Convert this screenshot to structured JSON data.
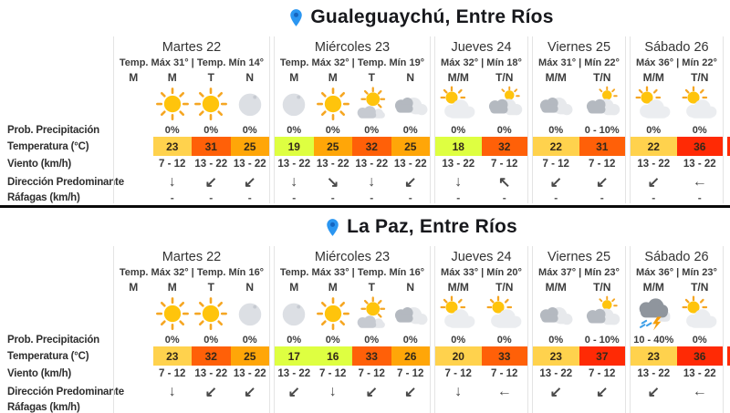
{
  "row_labels": [
    "Prob. Precipitación",
    "Temperatura (°C)",
    "Viento (km/h)",
    "Dirección Predominante",
    "Ráfagas (km/h)"
  ],
  "pin_color": "#2B96F1",
  "divider_color": "#0A0A0A",
  "temp_colors": {
    "cool": "#DEFF41",
    "mild": "#FFD24D",
    "warm": "#FFA608",
    "hot": "#FF6008",
    "very_hot": "#FF2A05"
  },
  "sections": [
    {
      "city": "Gualeguaychú, Entre Ríos",
      "edge_sliver_color": "#FF2A05",
      "days": [
        {
          "name": "Martes 22",
          "temp_line": "Temp. Máx 31° | Temp. Mín 14°",
          "cols": [
            {
              "period": "M",
              "empty": true
            },
            {
              "period": "M",
              "icon": "sun-icon",
              "precip": "0%",
              "temp": "23",
              "temp_color": "#FFD24D",
              "wind": "7 - 12",
              "dir": "↓",
              "gust": "-"
            },
            {
              "period": "T",
              "icon": "sun-icon",
              "precip": "0%",
              "temp": "31",
              "temp_color": "#FF6008",
              "wind": "13 - 22",
              "dir": "↙",
              "gust": "-"
            },
            {
              "period": "N",
              "icon": "moon-icon",
              "precip": "0%",
              "temp": "25",
              "temp_color": "#FFA608",
              "wind": "13 - 22",
              "dir": "↙",
              "gust": "-"
            }
          ]
        },
        {
          "name": "Miércoles 23",
          "temp_line": "Temp. Máx 32° | Temp. Mín 19°",
          "cols": [
            {
              "period": "M",
              "icon": "moon-icon",
              "precip": "0%",
              "temp": "19",
              "temp_color": "#DEFF41",
              "wind": "13 - 22",
              "dir": "↓",
              "gust": "-"
            },
            {
              "period": "M",
              "icon": "sun-icon",
              "precip": "0%",
              "temp": "25",
              "temp_color": "#FFA608",
              "wind": "13 - 22",
              "dir": "↘",
              "gust": "-"
            },
            {
              "period": "T",
              "icon": "sun-with-cloud-icon",
              "precip": "0%",
              "temp": "32",
              "temp_color": "#FF6008",
              "wind": "13 - 22",
              "dir": "↓",
              "gust": "-"
            },
            {
              "period": "N",
              "icon": "cloudy-icon",
              "precip": "0%",
              "temp": "25",
              "temp_color": "#FFA608",
              "wind": "13 - 22",
              "dir": "↙",
              "gust": "-"
            }
          ]
        },
        {
          "name": "Jueves 24",
          "temp_line": "Máx 32° | Mín 18°",
          "cols": [
            {
              "period": "M/M",
              "icon": "partly-cloudy-icon",
              "precip": "0%",
              "temp": "18",
              "temp_color": "#DEFF41",
              "wind": "13 - 22",
              "dir": "↓",
              "gust": "-"
            },
            {
              "period": "T/N",
              "icon": "mostly-cloudy-icon",
              "precip": "0%",
              "temp": "32",
              "temp_color": "#FF6008",
              "wind": "7 - 12",
              "dir": "↖",
              "gust": "-"
            }
          ]
        },
        {
          "name": "Viernes 25",
          "temp_line": "Máx 31° | Mín 22°",
          "cols": [
            {
              "period": "M/M",
              "icon": "cloudy-icon",
              "precip": "0%",
              "temp": "22",
              "temp_color": "#FFD24D",
              "wind": "7 - 12",
              "dir": "↙",
              "gust": "-"
            },
            {
              "period": "T/N",
              "icon": "mostly-cloudy-icon",
              "precip": "0 - 10%",
              "temp": "31",
              "temp_color": "#FF6008",
              "wind": "7 - 12",
              "dir": "↙",
              "gust": "-"
            }
          ]
        },
        {
          "name": "Sábado 26",
          "temp_line": "Máx 36° | Mín 22°",
          "cols": [
            {
              "period": "M/M",
              "icon": "partly-cloudy-icon",
              "precip": "0%",
              "temp": "22",
              "temp_color": "#FFD24D",
              "wind": "13 - 22",
              "dir": "↙",
              "gust": "-"
            },
            {
              "period": "T/N",
              "icon": "partly-cloudy-icon",
              "precip": "0%",
              "temp": "36",
              "temp_color": "#FF2A05",
              "wind": "13 - 22",
              "dir": "←",
              "gust": "-"
            }
          ]
        }
      ]
    },
    {
      "city": "La Paz, Entre Ríos",
      "edge_sliver_color": "#FF2A05",
      "days": [
        {
          "name": "Martes 22",
          "temp_line": "Temp. Máx 32° | Temp. Mín 16°",
          "cols": [
            {
              "period": "M",
              "empty": true
            },
            {
              "period": "M",
              "icon": "sun-icon",
              "precip": "0%",
              "temp": "23",
              "temp_color": "#FFD24D",
              "wind": "7 - 12",
              "dir": "↓",
              "gust": ""
            },
            {
              "period": "T",
              "icon": "sun-icon",
              "precip": "0%",
              "temp": "32",
              "temp_color": "#FF6008",
              "wind": "13 - 22",
              "dir": "↙",
              "gust": ""
            },
            {
              "period": "N",
              "icon": "moon-icon",
              "precip": "0%",
              "temp": "25",
              "temp_color": "#FFA608",
              "wind": "13 - 22",
              "dir": "↙",
              "gust": ""
            }
          ]
        },
        {
          "name": "Miércoles 23",
          "temp_line": "Temp. Máx 33° | Temp. Mín 16°",
          "cols": [
            {
              "period": "M",
              "icon": "moon-icon",
              "precip": "0%",
              "temp": "17",
              "temp_color": "#DEFF41",
              "wind": "13 - 22",
              "dir": "↙",
              "gust": ""
            },
            {
              "period": "M",
              "icon": "sun-icon",
              "precip": "0%",
              "temp": "16",
              "temp_color": "#DEFF41",
              "wind": "7 - 12",
              "dir": "↓",
              "gust": ""
            },
            {
              "period": "T",
              "icon": "sun-with-cloud-icon",
              "precip": "0%",
              "temp": "33",
              "temp_color": "#FF6008",
              "wind": "7 - 12",
              "dir": "↙",
              "gust": ""
            },
            {
              "period": "N",
              "icon": "cloudy-icon",
              "precip": "0%",
              "temp": "26",
              "temp_color": "#FFA608",
              "wind": "7 - 12",
              "dir": "↙",
              "gust": ""
            }
          ]
        },
        {
          "name": "Jueves 24",
          "temp_line": "Máx 33° | Mín 20°",
          "cols": [
            {
              "period": "M/M",
              "icon": "partly-cloudy-icon",
              "precip": "0%",
              "temp": "20",
              "temp_color": "#FFD24D",
              "wind": "7 - 12",
              "dir": "↓",
              "gust": ""
            },
            {
              "period": "T/N",
              "icon": "partly-cloudy-icon",
              "precip": "0%",
              "temp": "33",
              "temp_color": "#FF6008",
              "wind": "7 - 12",
              "dir": "←",
              "gust": ""
            }
          ]
        },
        {
          "name": "Viernes 25",
          "temp_line": "Máx 37° | Mín 23°",
          "cols": [
            {
              "period": "M/M",
              "icon": "cloudy-icon",
              "precip": "0%",
              "temp": "23",
              "temp_color": "#FFD24D",
              "wind": "13 - 22",
              "dir": "↙",
              "gust": ""
            },
            {
              "period": "T/N",
              "icon": "mostly-cloudy-icon",
              "precip": "0 - 10%",
              "temp": "37",
              "temp_color": "#FF2A05",
              "wind": "7 - 12",
              "dir": "↙",
              "gust": ""
            }
          ]
        },
        {
          "name": "Sábado 26",
          "temp_line": "Máx 36° | Mín 23°",
          "cols": [
            {
              "period": "M/M",
              "icon": "storm-icon",
              "precip": "10 - 40%",
              "temp": "23",
              "temp_color": "#FFD24D",
              "wind": "13 - 22",
              "dir": "↙",
              "gust": ""
            },
            {
              "period": "T/N",
              "icon": "partly-cloudy-icon",
              "precip": "0%",
              "temp": "36",
              "temp_color": "#FF2A05",
              "wind": "13 - 22",
              "dir": "←",
              "gust": ""
            }
          ]
        }
      ]
    }
  ]
}
